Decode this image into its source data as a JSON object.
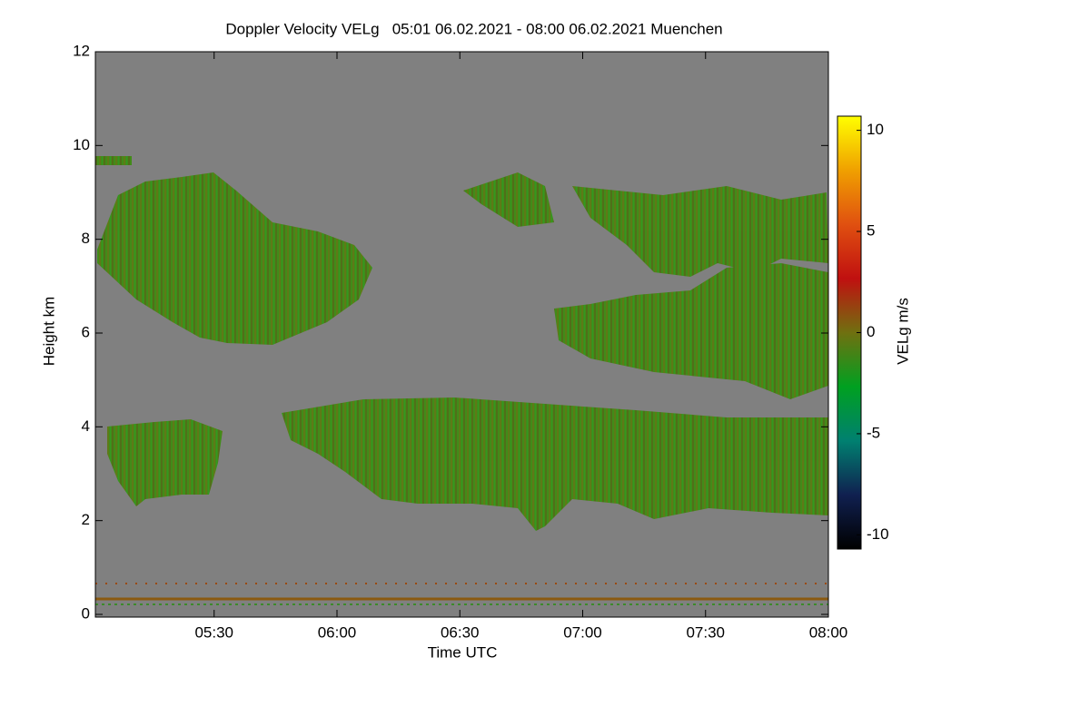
{
  "chart_data": {
    "type": "heatmap",
    "title": "Doppler Velocity VELg   05:01 06.02.2021 - 08:00 06.02.2021 Muenchen",
    "x_label": "Time UTC",
    "y_label": "Height km",
    "colorbar_label": "VELg m/s",
    "xlim": [
      301,
      480
    ],
    "xticks": [
      {
        "value": 330,
        "label": "05:30"
      },
      {
        "value": 360,
        "label": "06:00"
      },
      {
        "value": 390,
        "label": "06:30"
      },
      {
        "value": 420,
        "label": "07:00"
      },
      {
        "value": 450,
        "label": "07:30"
      },
      {
        "value": 480,
        "label": "08:00"
      }
    ],
    "ylim": [
      0,
      12
    ],
    "yticks": [
      0,
      2,
      4,
      6,
      8,
      10,
      12
    ],
    "zlim": [
      -10.7,
      10.7
    ],
    "zticks": [
      -10,
      -5,
      0,
      5,
      10
    ],
    "colorscale": [
      "#000000",
      "#102050",
      "#008070",
      "#00a020",
      "#707010",
      "#c01010",
      "#e05010",
      "#f0a000",
      "#ffff00"
    ],
    "background": "#808080"
  }
}
